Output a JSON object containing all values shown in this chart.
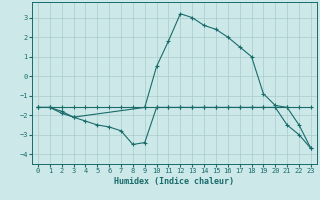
{
  "xlabel": "Humidex (Indice chaleur)",
  "bg_color": "#cce8e8",
  "grid_color": "#aacccc",
  "line_color": "#1a6b6b",
  "xlim": [
    -0.5,
    23.5
  ],
  "ylim": [
    -4.5,
    3.8
  ],
  "xticks": [
    0,
    1,
    2,
    3,
    4,
    5,
    6,
    7,
    8,
    9,
    10,
    11,
    12,
    13,
    14,
    15,
    16,
    17,
    18,
    19,
    20,
    21,
    22,
    23
  ],
  "yticks": [
    -4,
    -3,
    -2,
    -1,
    0,
    1,
    2,
    3
  ],
  "series": [
    {
      "x": [
        0,
        1,
        2,
        3,
        4,
        5,
        6,
        7,
        8,
        9,
        10,
        11,
        12,
        13,
        14,
        15,
        16,
        17,
        18,
        19,
        20,
        21,
        22,
        23
      ],
      "y": [
        -1.6,
        -1.6,
        -1.6,
        -1.6,
        -1.6,
        -1.6,
        -1.6,
        -1.6,
        -1.6,
        -1.6,
        -1.6,
        -1.6,
        -1.6,
        -1.6,
        -1.6,
        -1.6,
        -1.6,
        -1.6,
        -1.6,
        -1.6,
        -1.6,
        -1.6,
        -1.6,
        -1.6
      ]
    },
    {
      "x": [
        0,
        1,
        2,
        3,
        4,
        5,
        6,
        7,
        8,
        9,
        10,
        11,
        12,
        13,
        14,
        15,
        16,
        17,
        18,
        19,
        20,
        21,
        22,
        23
      ],
      "y": [
        -1.6,
        -1.6,
        -1.8,
        -2.1,
        -2.3,
        -2.5,
        -2.6,
        -2.8,
        -3.5,
        -3.4,
        -1.6,
        -1.6,
        -1.6,
        -1.6,
        -1.6,
        -1.6,
        -1.6,
        -1.6,
        -1.6,
        -1.6,
        -1.6,
        -2.5,
        -3.0,
        -3.7
      ]
    },
    {
      "x": [
        0,
        1,
        2,
        3,
        9,
        10,
        11,
        12,
        13,
        14,
        15,
        16,
        17,
        18,
        19,
        20,
        21,
        22,
        23
      ],
      "y": [
        -1.6,
        -1.6,
        -1.9,
        -2.1,
        -1.6,
        0.5,
        1.8,
        3.2,
        3.0,
        2.6,
        2.4,
        2.0,
        1.5,
        1.0,
        -0.9,
        -1.5,
        -1.6,
        -2.5,
        -3.7
      ]
    }
  ]
}
